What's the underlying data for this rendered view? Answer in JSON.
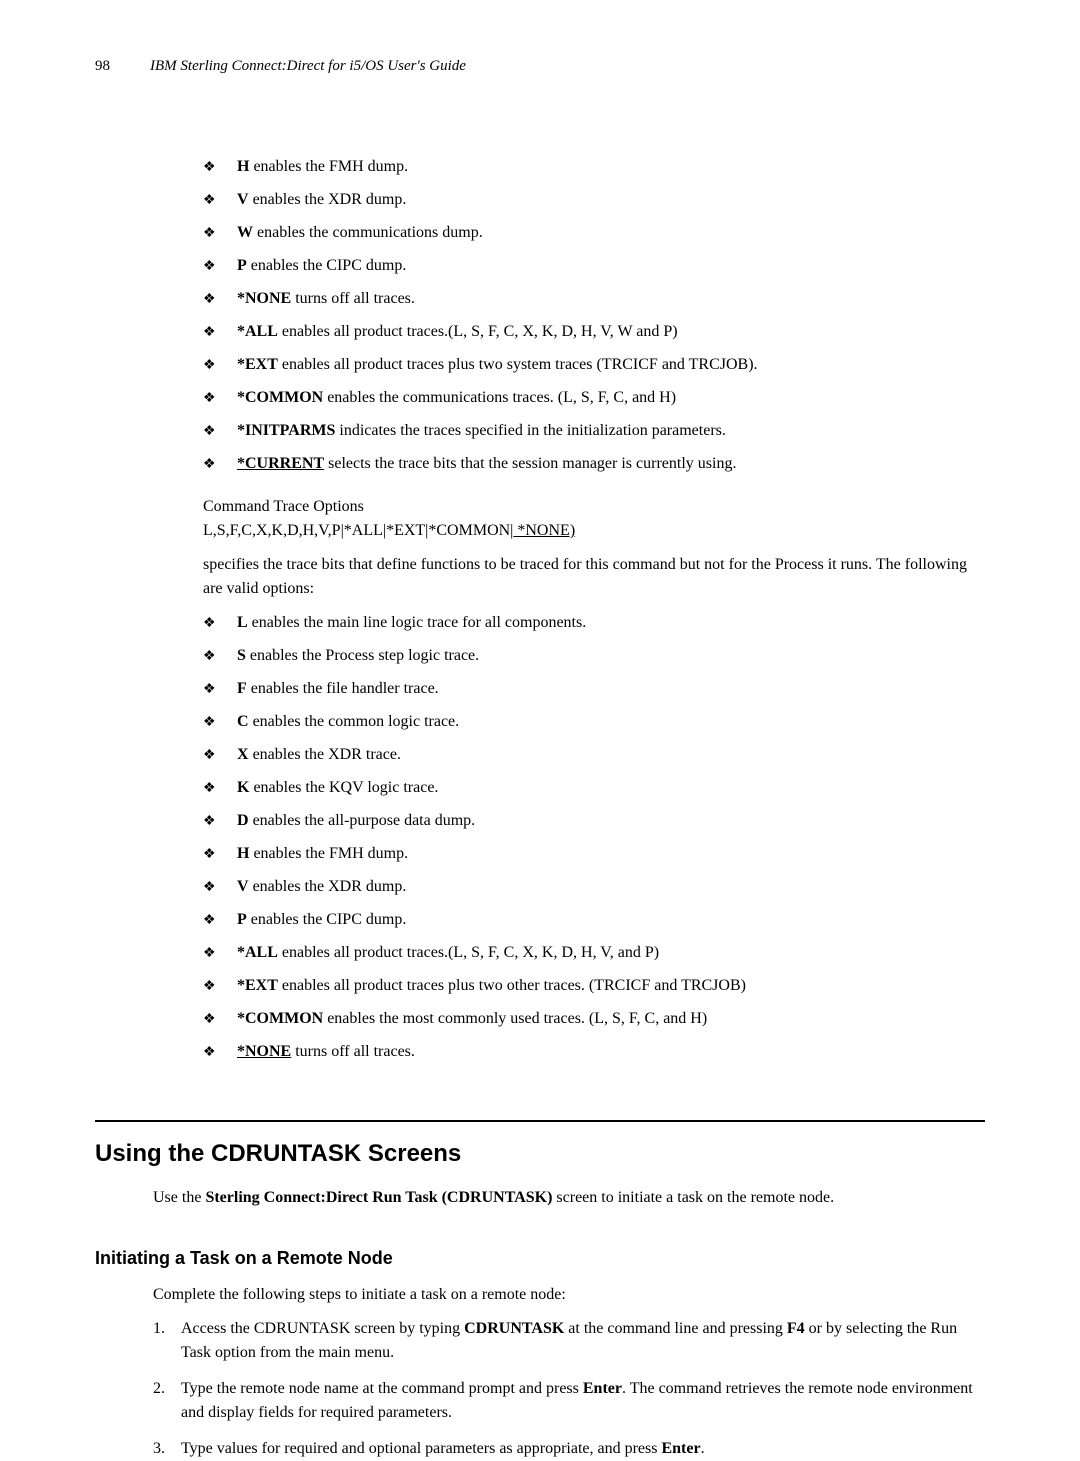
{
  "header": {
    "page": "98",
    "title": "IBM Sterling Connect:Direct for i5/OS User's Guide"
  },
  "list1": [
    {
      "bold": "H",
      "rest": " enables the FMH dump."
    },
    {
      "bold": "V",
      "rest": " enables the XDR dump."
    },
    {
      "bold": "W",
      "rest": " enables the communications dump."
    },
    {
      "bold": "P",
      "rest": " enables the CIPC dump."
    },
    {
      "bold": "*NONE",
      "rest": " turns off all traces."
    },
    {
      "bold": "*ALL",
      "rest": " enables all product traces.(L, S, F, C, X, K, D, H, V, W and P)"
    },
    {
      "bold": "*EXT",
      "rest": " enables all product traces plus two system traces (TRCICF and TRCJOB)."
    },
    {
      "bold": "*COMMON",
      "rest": " enables the communications traces. (L, S, F, C, and H)"
    },
    {
      "bold": "*INITPARMS",
      "rest": " indicates the traces specified in the initialization parameters."
    },
    {
      "bold": "*CURRENT",
      "underline": true,
      "rest": " selects the trace bits that the session manager is currently using."
    }
  ],
  "cmdTrace": {
    "line1": "Command Trace Options",
    "line2_pre": " L,S,F,C,X,K,D,H,V,P|*ALL|*EXT|*COMMON|",
    "line2_under": " *NONE)"
  },
  "specifies": "specifies the trace bits that define functions to be traced for this command but not for the Process it runs. The following are valid options:",
  "list2": [
    {
      "bold": "L",
      "rest": " enables the main line logic trace for all components."
    },
    {
      "bold": "S",
      "rest": " enables the Process step logic trace."
    },
    {
      "bold": "F",
      "rest": " enables the file handler trace."
    },
    {
      "bold": "C",
      "rest": " enables the common logic trace."
    },
    {
      "bold": "X",
      "rest": " enables the XDR trace."
    },
    {
      "bold": "K",
      "rest": " enables the KQV logic trace."
    },
    {
      "bold": "D",
      "rest": " enables the all-purpose data dump."
    },
    {
      "bold": "H",
      "rest": " enables the FMH dump."
    },
    {
      "bold": "V",
      "rest": " enables the XDR dump."
    },
    {
      "bold": "P",
      "rest": " enables the CIPC dump."
    },
    {
      "bold": "*ALL",
      "rest": " enables all product traces.(L, S, F, C, X, K, D, H, V, and P)"
    },
    {
      "bold": "*EXT",
      "rest": " enables all product traces plus two other traces. (TRCICF and TRCJOB)"
    },
    {
      "bold": "*COMMON",
      "rest": " enables the most commonly used traces. (L, S, F, C, and H)"
    },
    {
      "bold": "*NONE",
      "underline": true,
      "rest": " turns off all traces."
    }
  ],
  "section": {
    "title": "Using the CDRUNTASK Screens",
    "intro_pre": "Use the ",
    "intro_bold": "Sterling Connect:Direct Run Task (CDRUNTASK)",
    "intro_post": " screen to initiate a task on the remote node."
  },
  "subsection": {
    "title": "Initiating a Task on a Remote Node",
    "intro": "Complete the following steps to initiate a task on a remote node:"
  },
  "steps": [
    {
      "num": "1.",
      "parts": [
        {
          "t": "Access the CDRUNTASK screen by typing "
        },
        {
          "t": "CDRUNTASK",
          "b": true
        },
        {
          "t": " at the command line and pressing "
        },
        {
          "t": "F4",
          "b": true
        },
        {
          "t": " or by selecting the Run Task option from the main menu."
        }
      ]
    },
    {
      "num": "2.",
      "parts": [
        {
          "t": "Type the remote node name at the command prompt and press "
        },
        {
          "t": "Enter",
          "b": true
        },
        {
          "t": ". The command retrieves the remote node environment and display fields for required parameters."
        }
      ]
    },
    {
      "num": "3.",
      "parts": [
        {
          "t": "Type values for required and optional parameters as appropriate, and press "
        },
        {
          "t": "Enter",
          "b": true
        },
        {
          "t": "."
        }
      ]
    }
  ]
}
